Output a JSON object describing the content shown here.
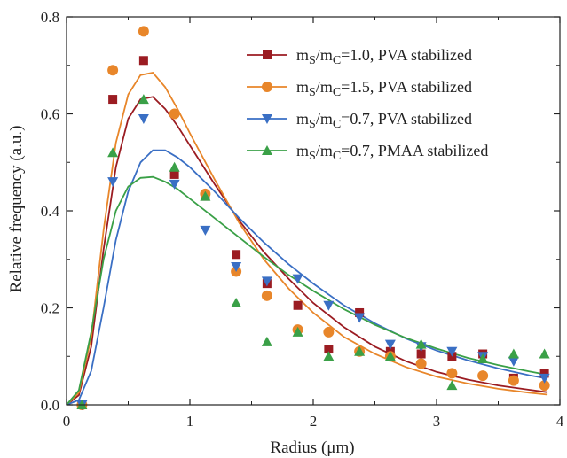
{
  "chart_data": {
    "type": "scatter",
    "xlabel": "Radius (μm)",
    "ylabel": "Relative frequency (a.u.)",
    "xlim": [
      0,
      4
    ],
    "ylim": [
      0,
      0.8
    ],
    "x_ticks": [
      "0",
      "1",
      "2",
      "3",
      "4"
    ],
    "y_ticks": [
      "0.0",
      "0.2",
      "0.4",
      "0.6",
      "0.8"
    ],
    "grid": false,
    "legend_position": "top-right",
    "series": [
      {
        "legend": {
          "prefix": "m",
          "sub1": "S",
          "mid": "/m",
          "sub2": "C",
          "suffix": "=1.0, PVA stabilized"
        },
        "color": "#9b1c22",
        "marker": "square",
        "x": [
          0.125,
          0.375,
          0.625,
          0.875,
          1.125,
          1.375,
          1.625,
          1.875,
          2.125,
          2.375,
          2.625,
          2.875,
          3.125,
          3.375,
          3.625,
          3.875
        ],
        "y": [
          0.0,
          0.63,
          0.71,
          0.475,
          0.43,
          0.31,
          0.25,
          0.205,
          0.115,
          0.19,
          0.11,
          0.105,
          0.1,
          0.105,
          0.055,
          0.065
        ],
        "fit_x": [
          0,
          0.1,
          0.2,
          0.3,
          0.4,
          0.5,
          0.6,
          0.7,
          0.8,
          0.9,
          1.0,
          1.2,
          1.4,
          1.6,
          1.8,
          2.0,
          2.25,
          2.5,
          2.75,
          3.0,
          3.25,
          3.5,
          3.75,
          3.9
        ],
        "fit_y": [
          0,
          0.02,
          0.12,
          0.32,
          0.49,
          0.59,
          0.63,
          0.635,
          0.61,
          0.575,
          0.535,
          0.455,
          0.38,
          0.315,
          0.26,
          0.21,
          0.16,
          0.12,
          0.09,
          0.068,
          0.052,
          0.04,
          0.031,
          0.026
        ]
      },
      {
        "legend": {
          "prefix": "m",
          "sub1": "S",
          "mid": "/m",
          "sub2": "C",
          "suffix": "=1.5, PVA stabilized"
        },
        "color": "#e8862a",
        "marker": "circle",
        "x": [
          0.125,
          0.375,
          0.625,
          0.875,
          1.125,
          1.375,
          1.625,
          1.875,
          2.125,
          2.375,
          2.625,
          2.875,
          3.125,
          3.375,
          3.625,
          3.875
        ],
        "y": [
          0.0,
          0.69,
          0.77,
          0.6,
          0.435,
          0.275,
          0.225,
          0.155,
          0.15,
          0.11,
          0.1,
          0.085,
          0.065,
          0.06,
          0.05,
          0.04
        ],
        "fit_x": [
          0,
          0.1,
          0.2,
          0.3,
          0.4,
          0.5,
          0.6,
          0.7,
          0.8,
          0.9,
          1.0,
          1.2,
          1.4,
          1.6,
          1.8,
          2.0,
          2.25,
          2.5,
          2.75,
          3.0,
          3.25,
          3.5,
          3.75,
          3.9
        ],
        "fit_y": [
          0,
          0.025,
          0.14,
          0.36,
          0.54,
          0.64,
          0.68,
          0.685,
          0.655,
          0.61,
          0.56,
          0.465,
          0.375,
          0.3,
          0.24,
          0.19,
          0.14,
          0.105,
          0.078,
          0.058,
          0.044,
          0.033,
          0.025,
          0.021
        ]
      },
      {
        "legend": {
          "prefix": "m",
          "sub1": "S",
          "mid": "/m",
          "sub2": "C",
          "suffix": "=0.7, PVA stabilized"
        },
        "color": "#3a6fc4",
        "marker": "triangle-down",
        "x": [
          0.125,
          0.375,
          0.625,
          0.875,
          1.125,
          1.375,
          1.625,
          1.875,
          2.125,
          2.375,
          2.625,
          2.875,
          3.125,
          3.375,
          3.625,
          3.875
        ],
        "y": [
          0.0,
          0.46,
          0.59,
          0.455,
          0.36,
          0.285,
          0.255,
          0.26,
          0.205,
          0.18,
          0.125,
          0.12,
          0.11,
          0.1,
          0.09,
          0.055
        ],
        "fit_x": [
          0,
          0.1,
          0.2,
          0.3,
          0.4,
          0.5,
          0.6,
          0.7,
          0.8,
          0.9,
          1.0,
          1.2,
          1.4,
          1.6,
          1.8,
          2.0,
          2.25,
          2.5,
          2.75,
          3.0,
          3.25,
          3.5,
          3.75,
          3.9
        ],
        "fit_y": [
          0,
          0.01,
          0.07,
          0.2,
          0.34,
          0.44,
          0.5,
          0.525,
          0.525,
          0.51,
          0.49,
          0.44,
          0.385,
          0.335,
          0.29,
          0.25,
          0.205,
          0.168,
          0.137,
          0.112,
          0.092,
          0.075,
          0.061,
          0.054
        ]
      },
      {
        "legend": {
          "prefix": "m",
          "sub1": "S",
          "mid": "/m",
          "sub2": "C",
          "suffix": "=0.7, PMAA stabilized"
        },
        "color": "#3aa047",
        "marker": "triangle-up",
        "x": [
          0.125,
          0.375,
          0.625,
          0.875,
          1.125,
          1.375,
          1.625,
          1.875,
          2.125,
          2.375,
          2.625,
          2.875,
          3.125,
          3.375,
          3.625,
          3.875
        ],
        "y": [
          0.0,
          0.52,
          0.63,
          0.49,
          0.43,
          0.21,
          0.13,
          0.15,
          0.1,
          0.11,
          0.1,
          0.125,
          0.04,
          0.095,
          0.105,
          0.105
        ],
        "fit_x": [
          0,
          0.1,
          0.2,
          0.3,
          0.4,
          0.5,
          0.6,
          0.7,
          0.8,
          0.9,
          1.0,
          1.2,
          1.4,
          1.6,
          1.8,
          2.0,
          2.25,
          2.5,
          2.75,
          3.0,
          3.25,
          3.5,
          3.75,
          3.9
        ],
        "fit_y": [
          0,
          0.03,
          0.15,
          0.3,
          0.4,
          0.45,
          0.468,
          0.47,
          0.46,
          0.445,
          0.425,
          0.385,
          0.345,
          0.305,
          0.268,
          0.235,
          0.197,
          0.165,
          0.138,
          0.116,
          0.097,
          0.082,
          0.069,
          0.062
        ]
      }
    ]
  }
}
